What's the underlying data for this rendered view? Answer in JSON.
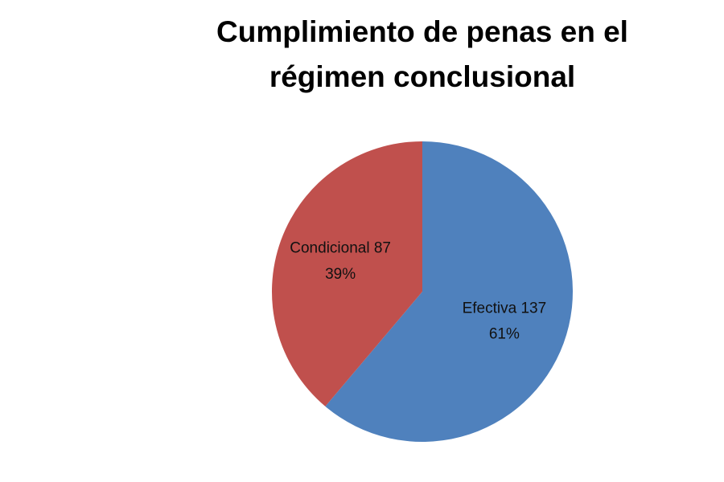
{
  "chart_data": {
    "type": "pie",
    "title": "Cumplimiento de penas en el régimen conclusional",
    "categories": [
      "Efectiva",
      "Condicional"
    ],
    "values": [
      137,
      87
    ],
    "percent_labels": [
      "61%",
      "39%"
    ],
    "colors": [
      "#4f81bd",
      "#c0504d"
    ]
  }
}
